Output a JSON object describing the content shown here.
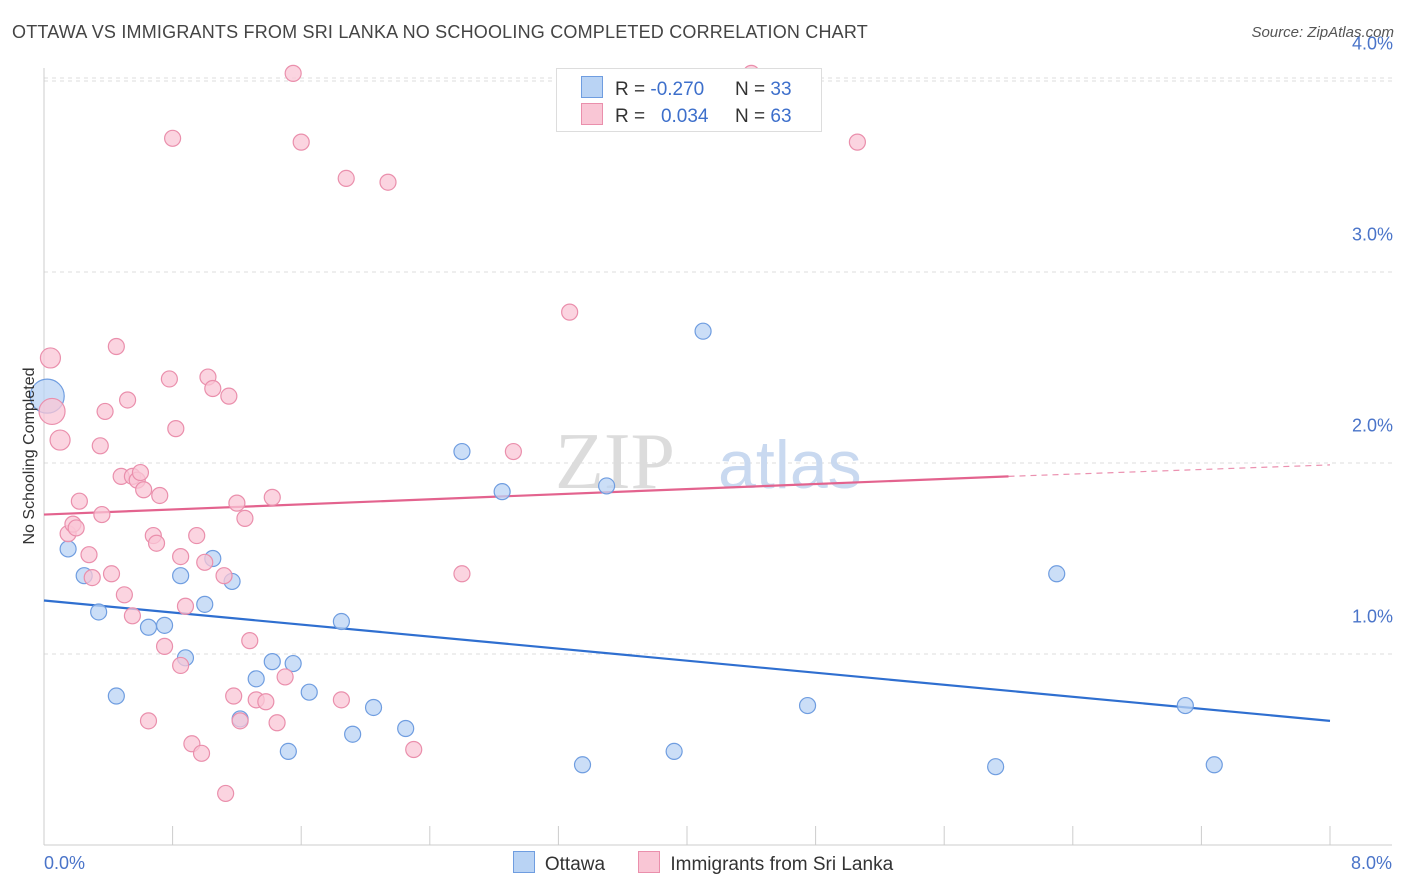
{
  "header": {
    "title": "OTTAWA VS IMMIGRANTS FROM SRI LANKA NO SCHOOLING COMPLETED CORRELATION CHART",
    "source": "Source: ZipAtlas.com"
  },
  "watermark": {
    "zip": "ZIP",
    "atlas": "atlas"
  },
  "legend": {
    "ottawa": {
      "r_label": "R = ",
      "r_value": "-0.270",
      "n_label": "N = ",
      "n_value": "33"
    },
    "srilanka": {
      "r_label": "R = ",
      "r_value": "0.034",
      "n_label": "N = ",
      "n_value": "63"
    }
  },
  "colors": {
    "ottawa_fill": "#b9d3f4",
    "ottawa_stroke": "#6f9de0",
    "ottawa_line": "#2f6fd0",
    "srilanka_fill": "#f9c6d5",
    "srilanka_stroke": "#ea8fac",
    "srilanka_line": "#e3638e",
    "tick_text": "#4a74c9",
    "grid": "#dddddd"
  },
  "chart_data": {
    "type": "scatter",
    "title": "OTTAWA VS IMMIGRANTS FROM SRI LANKA NO SCHOOLING COMPLETED CORRELATION CHART",
    "xlabel": "",
    "ylabel": "No Schooling Completed",
    "xlim": [
      0,
      8
    ],
    "ylim": [
      0,
      4.1
    ],
    "x_ticks": [
      0,
      8
    ],
    "x_tick_labels": [
      "0.0%",
      "8.0%"
    ],
    "y_ticks": [
      1,
      2,
      3,
      4
    ],
    "y_tick_labels": [
      "1.0%",
      "2.0%",
      "3.0%",
      "4.0%"
    ],
    "grid": true,
    "series": [
      {
        "name": "Ottawa",
        "x": [
          0.02,
          0.15,
          0.25,
          0.34,
          0.45,
          0.65,
          0.75,
          0.85,
          0.88,
          1.0,
          1.05,
          1.17,
          1.22,
          1.32,
          1.42,
          1.52,
          1.55,
          1.65,
          1.85,
          1.92,
          2.05,
          2.25,
          2.6,
          2.85,
          3.35,
          3.5,
          3.92,
          4.1,
          4.75,
          5.92,
          6.3,
          7.1,
          7.28
        ],
        "y": [
          2.35,
          1.55,
          1.41,
          1.22,
          0.78,
          1.14,
          1.15,
          1.41,
          0.98,
          1.26,
          1.5,
          1.38,
          0.66,
          0.87,
          0.96,
          0.49,
          0.95,
          0.8,
          1.17,
          0.58,
          0.72,
          0.61,
          2.06,
          1.85,
          0.42,
          1.88,
          0.49,
          2.69,
          0.73,
          0.41,
          1.42,
          0.73,
          0.42
        ],
        "sizes": [
          34,
          16,
          16,
          16,
          16,
          16,
          16,
          16,
          16,
          16,
          16,
          16,
          16,
          16,
          16,
          16,
          16,
          16,
          16,
          16,
          16,
          16,
          16,
          16,
          16,
          16,
          16,
          16,
          16,
          16,
          16,
          16,
          16
        ]
      },
      {
        "name": "Immigrants from Sri Lanka",
        "x": [
          0.04,
          0.05,
          0.1,
          0.15,
          0.18,
          0.2,
          0.22,
          0.28,
          0.3,
          0.35,
          0.36,
          0.38,
          0.42,
          0.45,
          0.48,
          0.5,
          0.52,
          0.55,
          0.55,
          0.58,
          0.6,
          0.62,
          0.65,
          0.68,
          0.7,
          0.72,
          0.75,
          0.78,
          0.8,
          0.82,
          0.85,
          0.85,
          0.88,
          0.92,
          0.95,
          0.98,
          1.0,
          1.02,
          1.05,
          1.12,
          1.13,
          1.15,
          1.18,
          1.2,
          1.22,
          1.25,
          1.28,
          1.32,
          1.38,
          1.42,
          1.45,
          1.5,
          1.55,
          1.6,
          1.85,
          1.88,
          2.14,
          2.3,
          2.6,
          2.92,
          3.27,
          4.4,
          5.06
        ],
        "y": [
          2.55,
          2.27,
          2.12,
          1.63,
          1.68,
          1.66,
          1.8,
          1.52,
          1.4,
          2.09,
          1.73,
          2.27,
          1.42,
          2.61,
          1.93,
          1.31,
          2.33,
          1.93,
          1.2,
          1.91,
          1.95,
          1.86,
          0.65,
          1.62,
          1.58,
          1.83,
          1.04,
          2.44,
          3.7,
          2.18,
          1.51,
          0.94,
          1.25,
          0.53,
          1.62,
          0.48,
          1.48,
          2.45,
          2.39,
          1.41,
          0.27,
          2.35,
          0.78,
          1.79,
          0.65,
          1.71,
          1.07,
          0.76,
          0.75,
          1.82,
          0.64,
          0.88,
          4.04,
          3.68,
          0.76,
          3.49,
          3.47,
          0.5,
          1.42,
          2.06,
          2.79,
          4.04,
          3.68
        ],
        "sizes": [
          20,
          26,
          20,
          16,
          16,
          16,
          16,
          16,
          16,
          16,
          16,
          16,
          16,
          16,
          16,
          16,
          16,
          16,
          16,
          16,
          16,
          16,
          16,
          16,
          16,
          16,
          16,
          16,
          16,
          16,
          16,
          16,
          16,
          16,
          16,
          16,
          16,
          16,
          16,
          16,
          16,
          16,
          16,
          16,
          16,
          16,
          16,
          16,
          16,
          16,
          16,
          16,
          16,
          16,
          16,
          16,
          16,
          16,
          16,
          16,
          16,
          16,
          16
        ]
      }
    ],
    "trend_lines": [
      {
        "series": "Ottawa",
        "x": [
          0,
          8
        ],
        "y": [
          1.28,
          0.65
        ],
        "style": "solid"
      },
      {
        "series": "Immigrants from Sri Lanka",
        "x": [
          0,
          6.0
        ],
        "y": [
          1.73,
          1.93
        ],
        "style": "solid"
      },
      {
        "series": "Immigrants from Sri Lanka",
        "x": [
          6.0,
          8
        ],
        "y": [
          1.93,
          1.99
        ],
        "style": "dashed"
      }
    ],
    "legend_position": "top-center",
    "bottom_legend": [
      "Ottawa",
      "Immigrants from Sri Lanka"
    ]
  }
}
